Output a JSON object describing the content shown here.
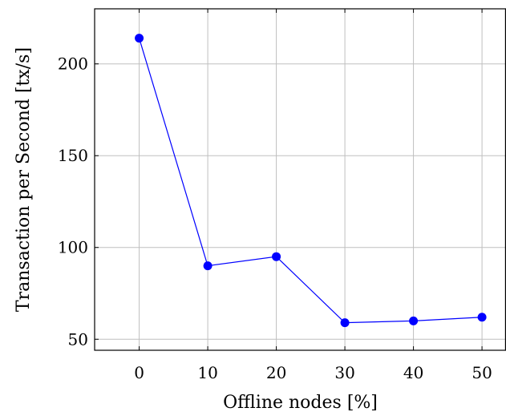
{
  "chart_data": {
    "type": "line",
    "title": "",
    "xlabel": "Offline nodes [%]",
    "ylabel": "Transaction per Second [tx/s]",
    "x": [
      0,
      10,
      20,
      30,
      40,
      50
    ],
    "series": [
      {
        "name": "",
        "values": [
          214,
          90,
          95,
          59,
          60,
          62
        ],
        "color": "#0000ff"
      }
    ],
    "xlim": [
      -6.5,
      53.5
    ],
    "ylim": [
      44,
      230
    ],
    "xticks": [
      0,
      10,
      20,
      30,
      40,
      50
    ],
    "yticks": [
      50,
      100,
      150,
      200
    ],
    "xtick_labels": [
      "0",
      "10",
      "20",
      "30",
      "40",
      "50"
    ],
    "ytick_labels": [
      "50",
      "100",
      "150",
      "200"
    ],
    "grid": true,
    "marker": "circle"
  }
}
